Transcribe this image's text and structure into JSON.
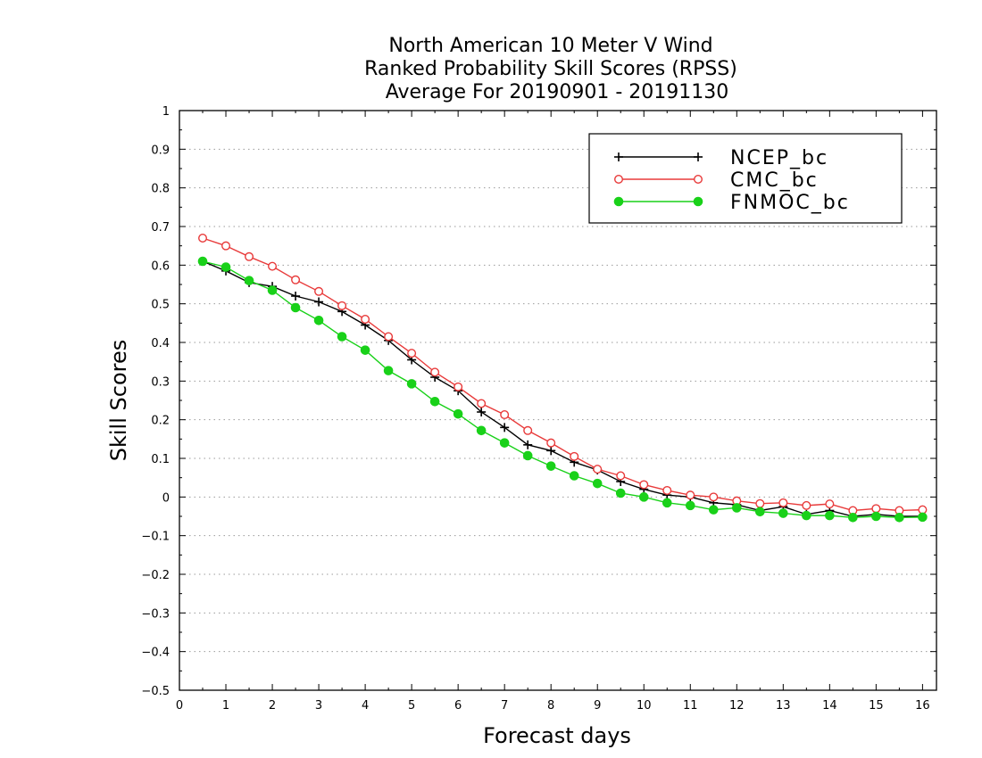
{
  "chart_data": {
    "type": "line",
    "title": [
      "North American 10 Meter V Wind",
      "Ranked Probability Skill Scores (RPSS)",
      "Average For 20190901 - 20191130"
    ],
    "xlabel": "Forecast days",
    "ylabel": "Skill Scores",
    "xlim": [
      0,
      16.3
    ],
    "ylim": [
      -0.5,
      1
    ],
    "x_ticks": [
      "0",
      "1",
      "2",
      "3",
      "4",
      "5",
      "6",
      "7",
      "8",
      "9",
      "10",
      "11",
      "12",
      "13",
      "14",
      "15",
      "16"
    ],
    "y_ticks": [
      "1",
      "0.9",
      "0.8",
      "0.7",
      "0.6",
      "0.5",
      "0.4",
      "0.3",
      "0.2",
      "0.1",
      "0",
      "−0.1",
      "−0.2",
      "−0.3",
      "−0.4",
      "−0.5"
    ],
    "grid": "horizontal dotted",
    "legend_position": "top-right",
    "x": [
      0.5,
      1,
      1.5,
      2,
      2.5,
      3,
      3.5,
      4,
      4.5,
      5,
      5.5,
      6,
      6.5,
      7,
      7.5,
      8,
      8.5,
      9,
      9.5,
      10,
      10.5,
      11,
      11.5,
      12,
      12.5,
      13,
      13.5,
      14,
      14.5,
      15,
      15.5,
      16
    ],
    "series": [
      {
        "name": "NCEP_bc",
        "color": "#000000",
        "marker": "plus",
        "values": [
          0.61,
          0.585,
          0.555,
          0.545,
          0.52,
          0.505,
          0.48,
          0.445,
          0.405,
          0.355,
          0.31,
          0.275,
          0.22,
          0.18,
          0.135,
          0.12,
          0.09,
          0.07,
          0.04,
          0.02,
          0.005,
          0.0,
          -0.015,
          -0.02,
          -0.035,
          -0.025,
          -0.045,
          -0.035,
          -0.05,
          -0.045,
          -0.05,
          -0.05
        ]
      },
      {
        "name": "CMC_bc",
        "color": "#e83a3a",
        "marker": "open-circle",
        "values": [
          0.67,
          0.65,
          0.622,
          0.597,
          0.562,
          0.532,
          0.495,
          0.46,
          0.415,
          0.372,
          0.323,
          0.285,
          0.242,
          0.213,
          0.172,
          0.14,
          0.105,
          0.072,
          0.055,
          0.032,
          0.017,
          0.005,
          0.0,
          -0.01,
          -0.017,
          -0.015,
          -0.022,
          -0.018,
          -0.035,
          -0.03,
          -0.035,
          -0.033
        ]
      },
      {
        "name": "FNMOC_bc",
        "color": "#19d119",
        "marker": "filled-circle",
        "values": [
          0.61,
          0.595,
          0.56,
          0.535,
          0.49,
          0.457,
          0.415,
          0.38,
          0.327,
          0.293,
          0.247,
          0.215,
          0.172,
          0.14,
          0.107,
          0.08,
          0.055,
          0.035,
          0.01,
          0.0,
          -0.015,
          -0.022,
          -0.033,
          -0.028,
          -0.038,
          -0.042,
          -0.048,
          -0.048,
          -0.053,
          -0.05,
          -0.053,
          -0.052
        ]
      }
    ]
  }
}
